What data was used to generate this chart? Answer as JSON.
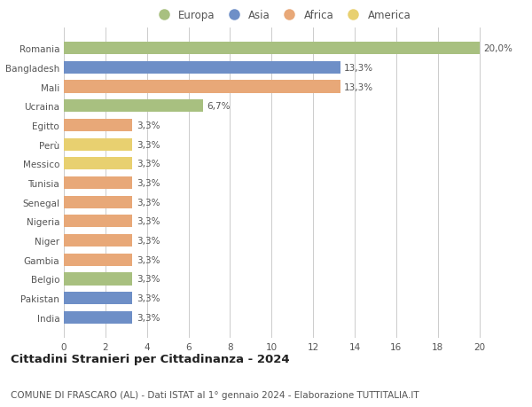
{
  "title1": "Cittadini Stranieri per Cittadinanza - 2024",
  "title2": "COMUNE DI FRASCARO (AL) - Dati ISTAT al 1° gennaio 2024 - Elaborazione TUTTITALIA.IT",
  "categories": [
    "Romania",
    "Bangladesh",
    "Mali",
    "Ucraina",
    "Egitto",
    "Perù",
    "Messico",
    "Tunisia",
    "Senegal",
    "Nigeria",
    "Niger",
    "Gambia",
    "Belgio",
    "Pakistan",
    "India"
  ],
  "values": [
    20.0,
    13.3,
    13.3,
    6.7,
    3.3,
    3.3,
    3.3,
    3.3,
    3.3,
    3.3,
    3.3,
    3.3,
    3.3,
    3.3,
    3.3
  ],
  "labels": [
    "20,0%",
    "13,3%",
    "13,3%",
    "6,7%",
    "3,3%",
    "3,3%",
    "3,3%",
    "3,3%",
    "3,3%",
    "3,3%",
    "3,3%",
    "3,3%",
    "3,3%",
    "3,3%",
    "3,3%"
  ],
  "colors": [
    "#a8c080",
    "#6e8fc7",
    "#e8a878",
    "#a8c080",
    "#e8a878",
    "#e8d070",
    "#e8d070",
    "#e8a878",
    "#e8a878",
    "#e8a878",
    "#e8a878",
    "#e8a878",
    "#a8c080",
    "#6e8fc7",
    "#6e8fc7"
  ],
  "legend": [
    {
      "label": "Europa",
      "color": "#a8c080"
    },
    {
      "label": "Asia",
      "color": "#6e8fc7"
    },
    {
      "label": "Africa",
      "color": "#e8a878"
    },
    {
      "label": "America",
      "color": "#e8d070"
    }
  ],
  "xlim": [
    0,
    21
  ],
  "xticks": [
    0,
    2,
    4,
    6,
    8,
    10,
    12,
    14,
    16,
    18,
    20
  ],
  "background_color": "#ffffff",
  "grid_color": "#cccccc",
  "bar_height": 0.65,
  "label_fontsize": 7.5,
  "tick_fontsize": 7.5,
  "title1_fontsize": 9.5,
  "title2_fontsize": 7.5
}
